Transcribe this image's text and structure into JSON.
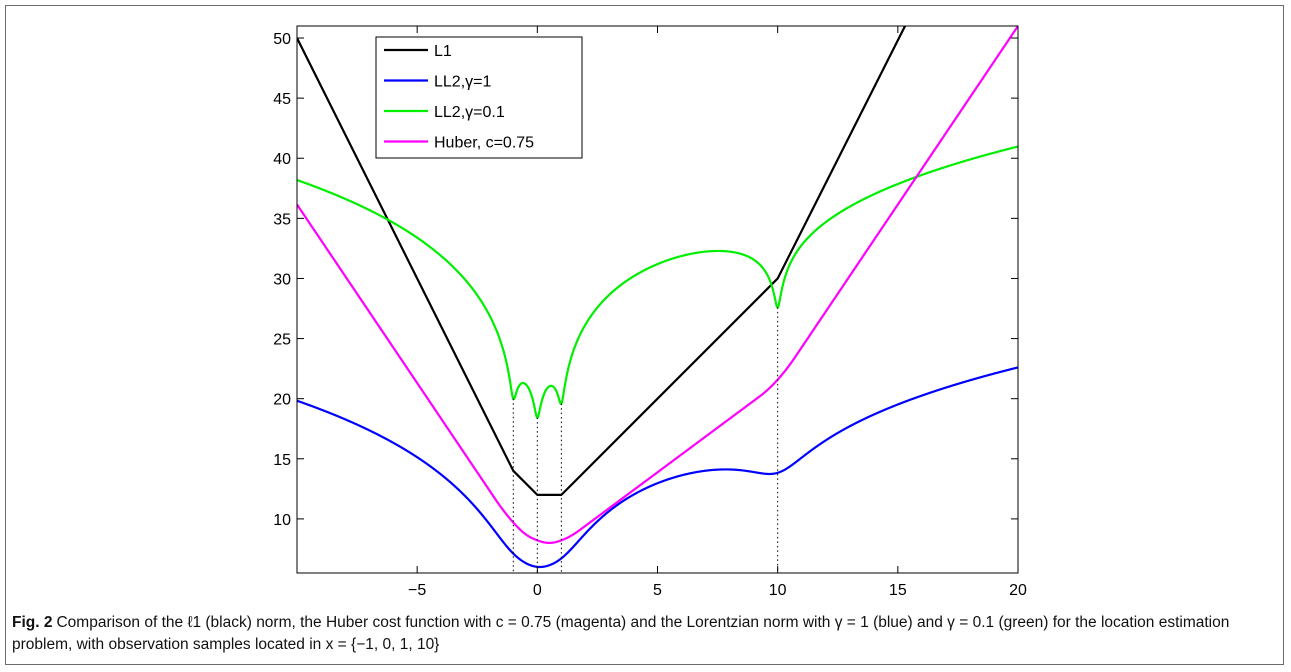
{
  "figure": {
    "label": "Fig. 2",
    "caption": "Comparison of the ℓ1 (black) norm, the Huber cost function with c = 0.75 (magenta) and the Lorentzian norm with γ = 1 (blue) and γ = 0.1 (green) for the location estimation problem, with observation samples located in x = {−1, 0, 1, 10}"
  },
  "chart_data": {
    "type": "line",
    "title": "",
    "xlabel": "",
    "ylabel": "",
    "xlim": [
      -10,
      20
    ],
    "ylim": [
      5.5,
      51
    ],
    "xticks": [
      -5,
      0,
      5,
      10,
      15,
      20
    ],
    "yticks": [
      10,
      15,
      20,
      25,
      30,
      35,
      40,
      45,
      50
    ],
    "xtick_labels": [
      "−5",
      "0",
      "5",
      "10",
      "15",
      "20"
    ],
    "ytick_labels": [
      "10",
      "15",
      "20",
      "25",
      "30",
      "35",
      "40",
      "45",
      "50"
    ],
    "grid": false,
    "legend_position": "top-left",
    "samples": [
      -1,
      0,
      1,
      10
    ],
    "series": [
      {
        "name": "L1",
        "color": "#000000",
        "kind": "L1",
        "x": [
          -10,
          -1,
          0,
          1,
          10,
          15.3
        ],
        "y": [
          50,
          14,
          12,
          12,
          30,
          51
        ]
      },
      {
        "name": "LL2,γ=1",
        "color": "#0000ff",
        "kind": "lorentz",
        "gamma": 1,
        "offset": 6.0
      },
      {
        "name": "LL2,γ=0.1",
        "color": "#00ee00",
        "kind": "lorentz",
        "gamma": 0.1,
        "offset": 18.42
      },
      {
        "name": "Huber, c=0.75",
        "color": "#ff00ff",
        "kind": "huber",
        "c": 0.75
      }
    ],
    "legend": [
      {
        "label": "L1",
        "color": "#000000"
      },
      {
        "label": "LL2,γ=1",
        "color": "#0000ff"
      },
      {
        "label": "LL2,γ=0.1",
        "color": "#00ee00"
      },
      {
        "label": "Huber, c=0.75",
        "color": "#ff00ff"
      }
    ]
  }
}
